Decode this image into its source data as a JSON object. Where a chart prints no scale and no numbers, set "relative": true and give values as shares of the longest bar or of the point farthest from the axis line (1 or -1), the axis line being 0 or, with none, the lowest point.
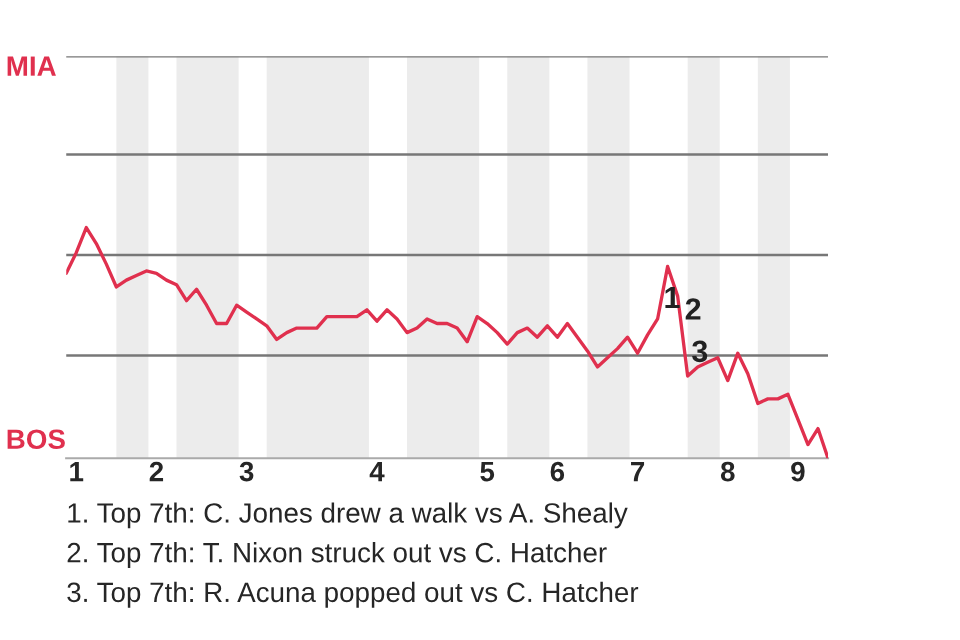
{
  "chart_data": {
    "type": "line",
    "relative": true,
    "categories": [
      null,
      "1",
      null,
      null,
      null,
      null,
      null,
      null,
      null,
      "2",
      null,
      null,
      null,
      null,
      null,
      null,
      null,
      null,
      "3",
      null,
      null,
      null,
      null,
      null,
      null,
      null,
      null,
      null,
      null,
      null,
      null,
      "4",
      null,
      null,
      null,
      null,
      null,
      null,
      null,
      null,
      null,
      null,
      "5",
      null,
      null,
      null,
      null,
      null,
      null,
      "6",
      null,
      null,
      null,
      null,
      null,
      null,
      null,
      "7",
      null,
      null,
      null,
      null,
      null,
      null,
      null,
      null,
      "8",
      null,
      null,
      null,
      null,
      null,
      null,
      "9",
      null,
      null,
      null
    ],
    "series": [
      {
        "color": "#e0304e",
        "values": [
          0.8,
          0.89,
          1,
          0.93,
          0.84,
          0.74,
          0.77,
          0.79,
          0.81,
          0.8,
          0.77,
          0.75,
          0.68,
          0.73,
          0.66,
          0.58,
          0.58,
          0.66,
          0.63,
          0.6,
          0.57,
          0.51,
          0.54,
          0.56,
          0.56,
          0.56,
          0.61,
          0.61,
          0.61,
          0.61,
          0.64,
          0.59,
          0.64,
          0.6,
          0.54,
          0.56,
          0.6,
          0.58,
          0.58,
          0.56,
          0.5,
          0.61,
          0.58,
          0.54,
          0.49,
          0.54,
          0.56,
          0.52,
          0.57,
          0.52,
          0.58,
          0.52,
          0.46,
          0.39,
          0.43,
          0.47,
          0.52,
          0.45,
          0.53,
          0.6,
          0.83,
          0.7,
          0.35,
          0.39,
          0.41,
          0.43,
          0.33,
          0.45,
          0.36,
          0.23,
          0.25,
          0.25,
          0.27,
          0.16,
          0.05,
          0.12,
          -0.01
        ]
      }
    ],
    "ref_lines": [
      {
        "axis": "y",
        "value": 0.44,
        "color": "#777777"
      },
      {
        "axis": "y",
        "value": 0.88,
        "color": "#777777"
      },
      {
        "axis": "y",
        "value": 1.32,
        "color": "#777777"
      },
      {
        "axis": "y",
        "value": 1.75,
        "color": "#777777"
      }
    ],
    "annotations": [
      "MIA",
      "BOS",
      "1",
      "2",
      "3",
      "1. Top 7th: C. Jones drew a walk vs A. Shealy",
      "2. Top 7th: T. Nixon struck out vs C. Hatcher",
      "3. Top 7th: R. Acuna popped out vs C. Hatcher"
    ]
  }
}
